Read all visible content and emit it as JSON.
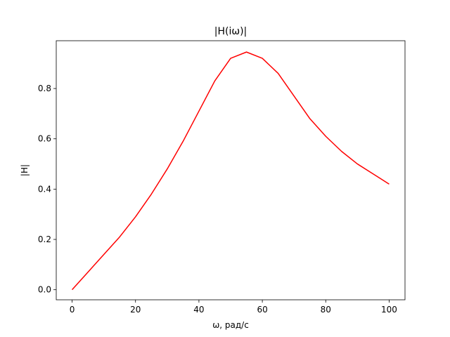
{
  "chart_data": {
    "type": "line",
    "title": "|H(iω)|",
    "xlabel": "ω, рад/с",
    "ylabel": "|H|",
    "xlim": [
      -5,
      105
    ],
    "ylim": [
      -0.04,
      0.99
    ],
    "xticks": [
      0,
      20,
      40,
      60,
      80,
      100
    ],
    "xtick_labels": [
      "0",
      "20",
      "40",
      "60",
      "80",
      "100"
    ],
    "yticks": [
      0.0,
      0.2,
      0.4,
      0.6,
      0.8
    ],
    "ytick_labels": [
      "0.0",
      "0.2",
      "0.4",
      "0.6",
      "0.8"
    ],
    "grid": false,
    "series": [
      {
        "color": "#ff0000",
        "x": [
          0,
          5,
          10,
          15,
          20,
          25,
          30,
          35,
          40,
          45,
          50,
          55,
          60,
          65,
          70,
          75,
          80,
          85,
          90,
          95,
          100
        ],
        "y": [
          0.0,
          0.07,
          0.14,
          0.21,
          0.29,
          0.38,
          0.48,
          0.59,
          0.71,
          0.83,
          0.92,
          0.945,
          0.92,
          0.86,
          0.77,
          0.68,
          0.61,
          0.55,
          0.5,
          0.46,
          0.42
        ]
      }
    ]
  }
}
